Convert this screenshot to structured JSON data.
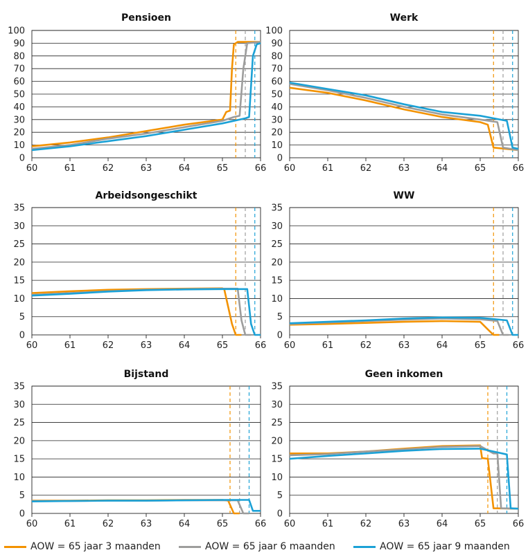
{
  "colors": {
    "s1": "#F39200",
    "s2": "#9D9D9C",
    "s3": "#1BA1D6",
    "grid": "#222222",
    "axis": "#222222"
  },
  "legend": [
    {
      "name": "AOW = 65 jaar 3 maanden",
      "color": "#F39200"
    },
    {
      "name": "AOW = 65 jaar 6 maanden",
      "color": "#9D9D9C"
    },
    {
      "name": "AOW = 65 jaar 9 maanden",
      "color": "#1BA1D6"
    }
  ],
  "chart_data": [
    {
      "type": "line",
      "title": "Pensioen",
      "xlim": [
        60,
        66
      ],
      "ylim": [
        0,
        100
      ],
      "xticks": [
        60,
        61,
        62,
        63,
        64,
        65,
        66
      ],
      "yticks": [
        0,
        10,
        20,
        30,
        40,
        50,
        60,
        70,
        80,
        90,
        100
      ],
      "vlines": [
        65.35,
        65.6,
        65.85
      ],
      "series": [
        {
          "name": "AOW = 65 jaar 3 maanden",
          "x": [
            60,
            61,
            62,
            63,
            64,
            65,
            65.1,
            65.2,
            65.25,
            65.3,
            65.4,
            66
          ],
          "y": [
            9,
            12,
            16,
            21,
            26,
            30,
            36,
            37,
            70,
            89,
            91,
            91
          ]
        },
        {
          "name": "AOW = 65 jaar 6 maanden",
          "x": [
            60,
            61,
            62,
            63,
            64,
            65,
            65.3,
            65.45,
            65.55,
            65.65,
            66
          ],
          "y": [
            7,
            10,
            15,
            19,
            24,
            29,
            32,
            33,
            70,
            90,
            91
          ]
        },
        {
          "name": "AOW = 65 jaar 9 maanden",
          "x": [
            60,
            61,
            62,
            63,
            64,
            65,
            65.6,
            65.7,
            65.8,
            65.9,
            66
          ],
          "y": [
            6,
            9,
            13,
            17,
            22,
            27,
            31,
            32,
            80,
            89,
            90
          ]
        }
      ]
    },
    {
      "type": "line",
      "title": "Werk",
      "xlim": [
        60,
        66
      ],
      "ylim": [
        0,
        100
      ],
      "xticks": [
        60,
        61,
        62,
        63,
        64,
        65,
        66
      ],
      "yticks": [
        0,
        10,
        20,
        30,
        40,
        50,
        60,
        70,
        80,
        90,
        100
      ],
      "vlines": [
        65.35,
        65.6,
        65.85
      ],
      "series": [
        {
          "name": "AOW = 65 jaar 3 maanden",
          "x": [
            60,
            61,
            62,
            63,
            64,
            65,
            65.2,
            65.35,
            66
          ],
          "y": [
            55,
            51,
            45,
            38,
            32,
            28,
            26,
            8,
            6
          ]
        },
        {
          "name": "AOW = 65 jaar 6 maanden",
          "x": [
            60,
            61,
            62,
            63,
            64,
            65,
            65.45,
            65.6,
            66
          ],
          "y": [
            58,
            53,
            47,
            40,
            34,
            30,
            28,
            8,
            6
          ]
        },
        {
          "name": "AOW = 65 jaar 9 maanden",
          "x": [
            60,
            61,
            62,
            63,
            64,
            65,
            65.7,
            65.85,
            66
          ],
          "y": [
            59,
            54,
            49,
            42,
            36,
            33,
            29,
            8,
            7
          ]
        }
      ]
    },
    {
      "type": "line",
      "title": "Arbeidsongeschikt",
      "xlim": [
        60,
        66
      ],
      "ylim": [
        0,
        35
      ],
      "xticks": [
        60,
        61,
        62,
        63,
        64,
        65,
        66
      ],
      "yticks": [
        0,
        5,
        10,
        15,
        20,
        25,
        30,
        35
      ],
      "vlines": [
        65.35,
        65.6,
        65.85
      ],
      "series": [
        {
          "name": "AOW = 65 jaar 3 maanden",
          "x": [
            60,
            61,
            62,
            63,
            64,
            65,
            65.05,
            65.25,
            65.35,
            65.5
          ],
          "y": [
            11.5,
            12,
            12.4,
            12.6,
            12.7,
            12.8,
            12.5,
            3,
            0,
            0
          ]
        },
        {
          "name": "AOW = 65 jaar 6 maanden",
          "x": [
            60,
            61,
            62,
            63,
            64,
            65,
            65.4,
            65.5,
            65.6,
            65.75
          ],
          "y": [
            11,
            11.5,
            12,
            12.4,
            12.6,
            12.7,
            12.7,
            4,
            0,
            0
          ]
        },
        {
          "name": "AOW = 65 jaar 9 maanden",
          "x": [
            60,
            61,
            62,
            63,
            64,
            65,
            65.65,
            65.75,
            65.85,
            66
          ],
          "y": [
            10.8,
            11.3,
            11.9,
            12.3,
            12.5,
            12.6,
            12.6,
            3,
            0,
            0
          ]
        }
      ]
    },
    {
      "type": "line",
      "title": "WW",
      "xlim": [
        60,
        66
      ],
      "ylim": [
        0,
        35
      ],
      "xticks": [
        60,
        61,
        62,
        63,
        64,
        65,
        66
      ],
      "yticks": [
        0,
        5,
        10,
        15,
        20,
        25,
        30,
        35
      ],
      "vlines": [
        65.35,
        65.6,
        65.85
      ],
      "series": [
        {
          "name": "AOW = 65 jaar 3 maanden",
          "x": [
            60,
            61,
            62,
            63,
            64,
            65,
            65.2,
            65.35,
            65.5
          ],
          "y": [
            2.8,
            3,
            3.3,
            3.6,
            3.8,
            3.6,
            1.5,
            0,
            0
          ]
        },
        {
          "name": "AOW = 65 jaar 6 maanden",
          "x": [
            60,
            61,
            62,
            63,
            64,
            65,
            65.45,
            65.6,
            65.75
          ],
          "y": [
            3,
            3.4,
            3.8,
            4.2,
            4.5,
            4.3,
            3.8,
            0,
            0
          ]
        },
        {
          "name": "AOW = 65 jaar 9 maanden",
          "x": [
            60,
            61,
            62,
            63,
            64,
            65,
            65.7,
            65.85,
            66
          ],
          "y": [
            3.2,
            3.6,
            4,
            4.5,
            4.8,
            4.7,
            4,
            0,
            0
          ]
        }
      ]
    },
    {
      "type": "line",
      "title": "Bijstand",
      "xlim": [
        60,
        66
      ],
      "ylim": [
        0,
        35
      ],
      "xticks": [
        60,
        61,
        62,
        63,
        64,
        65,
        66
      ],
      "yticks": [
        0,
        5,
        10,
        15,
        20,
        25,
        30,
        35
      ],
      "vlines": [
        65.2,
        65.45,
        65.7
      ],
      "series": [
        {
          "name": "AOW = 65 jaar 3 maanden",
          "x": [
            60,
            61,
            62,
            63,
            64,
            65,
            65.15,
            65.3,
            65.45
          ],
          "y": [
            3.5,
            3.5,
            3.6,
            3.6,
            3.7,
            3.7,
            3.5,
            0,
            0
          ]
        },
        {
          "name": "AOW = 65 jaar 6 maanden",
          "x": [
            60,
            61,
            62,
            63,
            64,
            65,
            65.4,
            65.55,
            65.7
          ],
          "y": [
            3.4,
            3.4,
            3.5,
            3.5,
            3.6,
            3.6,
            3.6,
            0,
            0
          ]
        },
        {
          "name": "AOW = 65 jaar 9 maanden",
          "x": [
            60,
            61,
            62,
            63,
            64,
            65,
            65.7,
            65.8,
            66
          ],
          "y": [
            3.3,
            3.4,
            3.5,
            3.5,
            3.6,
            3.7,
            3.7,
            0.7,
            0.7
          ]
        }
      ]
    },
    {
      "type": "line",
      "title": "Geen inkomen",
      "xlim": [
        60,
        66
      ],
      "ylim": [
        0,
        35
      ],
      "xticks": [
        60,
        61,
        62,
        63,
        64,
        65,
        66
      ],
      "yticks": [
        0,
        5,
        10,
        15,
        20,
        25,
        30,
        35
      ],
      "vlines": [
        65.2,
        65.45,
        65.7
      ],
      "series": [
        {
          "name": "AOW = 65 jaar 3 maanden",
          "x": [
            60,
            61,
            62,
            63,
            64,
            65,
            65.05,
            65.2,
            65.35,
            66
          ],
          "y": [
            16.5,
            16.5,
            17,
            17.8,
            18.5,
            18.7,
            15.2,
            15,
            1.4,
            1.3
          ]
        },
        {
          "name": "AOW = 65 jaar 6 maanden",
          "x": [
            60,
            61,
            62,
            63,
            64,
            65,
            65.35,
            65.45,
            65.55,
            66
          ],
          "y": [
            16,
            16.3,
            17,
            17.6,
            18.3,
            18.5,
            16.5,
            16.5,
            1.4,
            1.3
          ]
        },
        {
          "name": "AOW = 65 jaar 9 maanden",
          "x": [
            60,
            61,
            62,
            63,
            64,
            65,
            65.7,
            65.8,
            66
          ],
          "y": [
            15,
            15.8,
            16.5,
            17.2,
            17.7,
            17.8,
            16.2,
            1.4,
            1.3
          ]
        }
      ]
    }
  ]
}
